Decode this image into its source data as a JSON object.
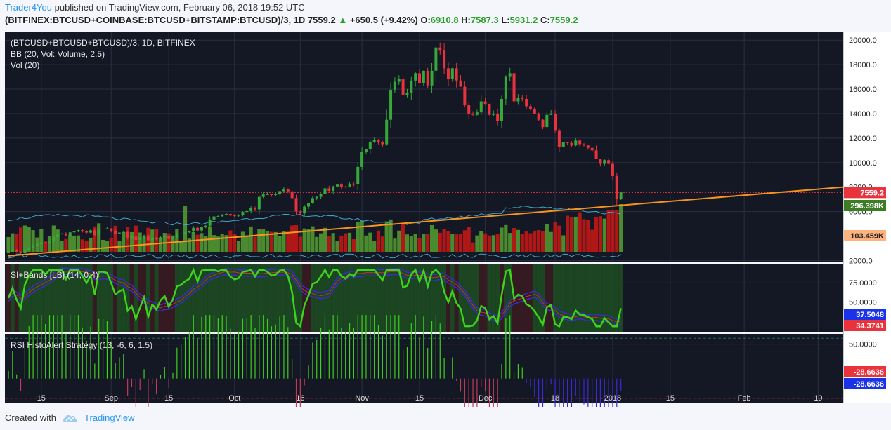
{
  "header": {
    "user": "Trader4You",
    "published": "published on TradingView.com, February 06, 2018 19:52 UTC",
    "symbol": "(BITFINEX:BTCUSD+COINBASE:BTCUSD+BITSTAMP:BTCUSD)/3, 1D",
    "last": "7559.2",
    "arrow": "▲",
    "change": "+650.5 (+9.42%)",
    "o_label": "O:",
    "o": "6910.8",
    "h_label": "H:",
    "h": "7587.3",
    "l_label": "L:",
    "l": "5931.2",
    "c_label": "C:",
    "c": "7559.2"
  },
  "footer": {
    "created_with": "Created with",
    "brand": "TradingView"
  },
  "chart_data": {
    "type": "candlestick",
    "main_pane": {
      "title": "(BTCUSD+BTCUSD+BTCUSD)/3, 1D, BITFINEX",
      "indicators": [
        "BB (20, Vol: Volume, 2.5)",
        "Vol (20)"
      ],
      "y_ticks": [
        20000,
        18000,
        16000,
        14000,
        12000,
        10000,
        8000,
        6000,
        4000,
        2000
      ],
      "y_tick_labels": [
        "20000.0",
        "18000.0",
        "16000.0",
        "14000.0",
        "12000.0",
        "10000.0",
        "8000.0",
        "6000.0",
        "",
        "2000.0"
      ],
      "ylim": [
        1850,
        20700
      ],
      "price_line": 7559.2,
      "price_tag": "7559.2",
      "volume_tag_1": "296.398K",
      "volume_tag_2": "103.459K",
      "trendline": [
        [
          0,
          2380
        ],
        [
          147,
          6450
        ]
      ],
      "closes": [
        2740,
        2880,
        2720,
        2600,
        2900,
        3050,
        3200,
        3350,
        3470,
        3430,
        3560,
        3900,
        4150,
        4200,
        4050,
        4300,
        4370,
        4480,
        4390,
        4280,
        4460,
        4080,
        4550,
        4600,
        4620,
        4430,
        4210,
        4280,
        4330,
        3880,
        3950,
        3680,
        3860,
        4050,
        3650,
        3850,
        3740,
        3900,
        3980,
        3770,
        3900,
        4150,
        4200,
        4300,
        4380,
        4670,
        4450,
        4720,
        4840,
        5350,
        5600,
        5620,
        5750,
        5800,
        5680,
        5650,
        5730,
        5960,
        6040,
        6320,
        6180,
        7200,
        7400,
        7410,
        7350,
        7450,
        7670,
        7800,
        7650,
        7100,
        6010,
        5850,
        6400,
        6700,
        7100,
        7200,
        7450,
        7900,
        7700,
        8050,
        8200,
        8030,
        8000,
        8250,
        8240,
        9650,
        10900,
        11100,
        11700,
        11870,
        11700,
        11500,
        13500,
        15900,
        16600,
        16800,
        15500,
        15700,
        16700,
        17300,
        16500,
        17500,
        16300,
        17500,
        19400,
        19200,
        17700,
        16800,
        17700,
        16700,
        16200,
        14700,
        14000,
        13900,
        14100,
        15000,
        14800,
        13900,
        14000,
        13400,
        15200,
        17000,
        17300,
        15000,
        15300,
        15200,
        14600,
        14400,
        14000,
        13500,
        12900,
        13900,
        14000,
        12600,
        11300,
        11700,
        11600,
        11400,
        11800,
        11500,
        11400,
        11200,
        11000,
        10300,
        9900,
        10200,
        9900,
        8900,
        7000,
        7560
      ],
      "x_ticks": [
        {
          "label": "15",
          "index": 8
        },
        {
          "label": "Sep",
          "index": 25
        },
        {
          "label": "15",
          "index": 39
        },
        {
          "label": "Oct",
          "index": 55
        },
        {
          "label": "16",
          "index": 71
        },
        {
          "label": "Nov",
          "index": 86
        },
        {
          "label": "15",
          "index": 100
        },
        {
          "label": "Dec",
          "index": 116
        },
        {
          "label": "18",
          "index": 133
        },
        {
          "label": "2018",
          "index": 147
        },
        {
          "label": "15",
          "index": 161
        },
        {
          "label": "Feb",
          "index": 179
        },
        {
          "label": "19",
          "index": 197
        }
      ]
    },
    "rsi_pane": {
      "title": "SI+Bands [LB] (14, 0.4)",
      "y_ticks": [
        75,
        50,
        25
      ],
      "y_tick_labels": [
        "75.0000",
        "50.0000",
        "25.0000"
      ],
      "ylim": [
        10,
        100
      ],
      "tag_blue": "37.5048",
      "tag_red": "34.3741"
    },
    "histo_pane": {
      "title": "RSI HistoAlert Strategy (13, -6, 6, 1.5)",
      "y_ticks": [
        50
      ],
      "y_tick_labels": [
        "50.0000"
      ],
      "ylim": [
        -35,
        65
      ],
      "threshold": -28.6636,
      "tag_red": "-28.6636",
      "tag_blue": "-28.6636"
    }
  },
  "colors": {
    "pane_bg": "#141724",
    "grid": "#2a2f40",
    "up": "#36a83a",
    "down": "#e8323c",
    "vol_up": "#4b8b2f",
    "vol_down": "#b01818",
    "trend": "#f7941d",
    "bands": "#3fa9c9",
    "rsi_line": "#3ed21a",
    "rsi_band": "#3a2bd1",
    "rsi_mid": "#c0392b",
    "price_tag": "#e8323c",
    "vol_tag": "#3b7d23",
    "vol_tag2": "#ffb27d"
  }
}
